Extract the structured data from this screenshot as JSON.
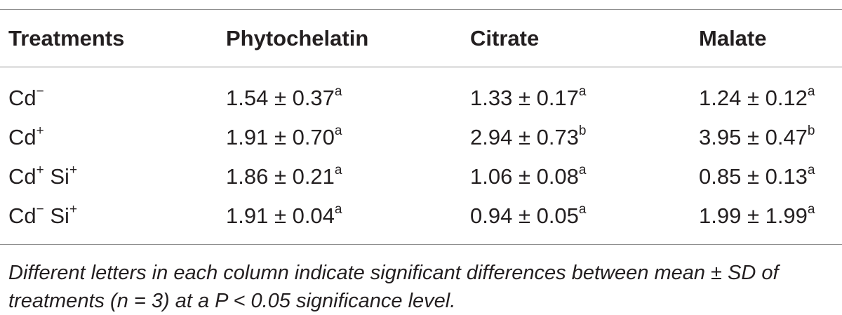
{
  "table": {
    "headers": [
      "Treatments",
      "Phytochelatin",
      "Citrate",
      "Malate"
    ],
    "rows": [
      {
        "treatment_base": "Cd",
        "treatment_sup": "−",
        "treatment_base2": "",
        "treatment_sup2": "",
        "phytochelatin": "1.54 ± 0.37",
        "phytochelatin_sup": "a",
        "citrate": "1.33 ± 0.17",
        "citrate_sup": "a",
        "malate": "1.24 ± 0.12",
        "malate_sup": "a"
      },
      {
        "treatment_base": "Cd",
        "treatment_sup": "+",
        "treatment_base2": "",
        "treatment_sup2": "",
        "phytochelatin": "1.91 ± 0.70",
        "phytochelatin_sup": "a",
        "citrate": "2.94 ± 0.73",
        "citrate_sup": "b",
        "malate": "3.95 ± 0.47",
        "malate_sup": "b"
      },
      {
        "treatment_base": "Cd",
        "treatment_sup": "+",
        "treatment_base2": " Si",
        "treatment_sup2": "+",
        "phytochelatin": "1.86 ± 0.21",
        "phytochelatin_sup": "a",
        "citrate": "1.06 ± 0.08",
        "citrate_sup": "a",
        "malate": "0.85 ± 0.13",
        "malate_sup": "a"
      },
      {
        "treatment_base": "Cd",
        "treatment_sup": "−",
        "treatment_base2": " Si",
        "treatment_sup2": "+",
        "phytochelatin": "1.91 ± 0.04",
        "phytochelatin_sup": "a",
        "citrate": "0.94 ± 0.05",
        "citrate_sup": "a",
        "malate": "1.99 ± 1.99",
        "malate_sup": "a"
      }
    ],
    "footnote": "Different letters in each column indicate significant differences between mean ± SD of treatments (n = 3) at a P < 0.05 significance level."
  }
}
